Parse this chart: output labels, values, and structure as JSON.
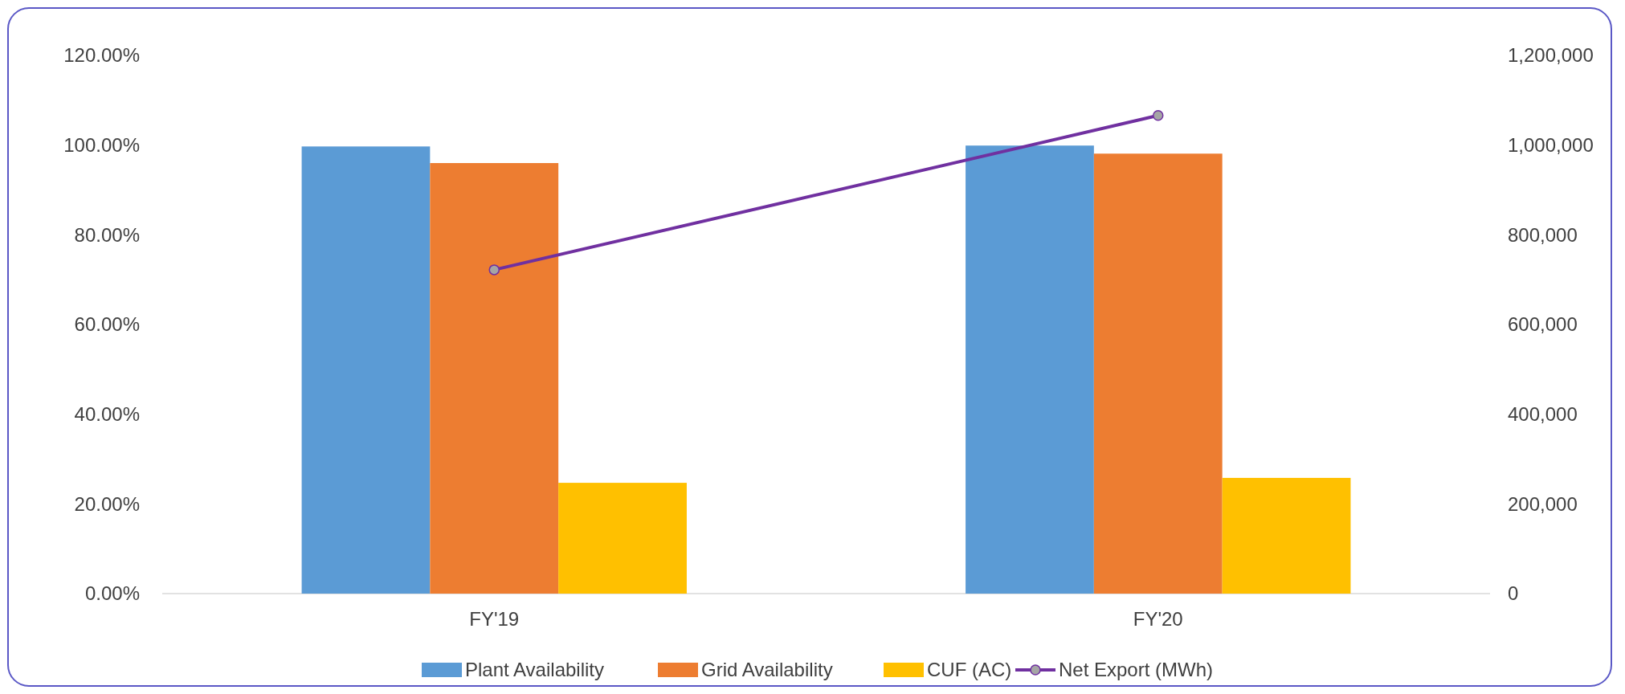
{
  "chart_data": {
    "type": "bar",
    "categories": [
      "FY'19",
      "FY'20"
    ],
    "series": [
      {
        "name": "Plant Availability",
        "color": "#5b9bd5",
        "values": [
          99.7,
          99.9
        ]
      },
      {
        "name": "Grid Availability",
        "color": "#ed7d31",
        "values": [
          96.0,
          98.1
        ]
      },
      {
        "name": "CUF (AC)",
        "color": "#ffc000",
        "values": [
          24.7,
          25.8
        ]
      },
      {
        "name": "Net Export (MWh)",
        "type": "line",
        "axis": "y2",
        "color": "#7030a0",
        "marker": "circle",
        "values": [
          722000,
          1066000
        ]
      }
    ],
    "ylim": [
      0,
      120
    ],
    "yticks": [
      {
        "value": 0,
        "label": "0.00%"
      },
      {
        "value": 20,
        "label": "20.00%"
      },
      {
        "value": 40,
        "label": "40.00%"
      },
      {
        "value": 60,
        "label": "60.00%"
      },
      {
        "value": 80,
        "label": "80.00%"
      },
      {
        "value": 100,
        "label": "100.00%"
      },
      {
        "value": 120,
        "label": "120.00%"
      }
    ],
    "y2lim": [
      0,
      1200000
    ],
    "y2ticks": [
      0,
      {
        "value": 200000,
        "label": "200,000"
      },
      {
        "value": 400000,
        "label": "400,000"
      },
      {
        "value": 600000,
        "label": "600,000"
      },
      {
        "value": 800000,
        "label": "800,000"
      },
      {
        "value": 1000000,
        "label": "1,000,000"
      },
      {
        "value": 1200000,
        "label": "1,200,000"
      }
    ],
    "grid": false,
    "legend": "bottom"
  }
}
